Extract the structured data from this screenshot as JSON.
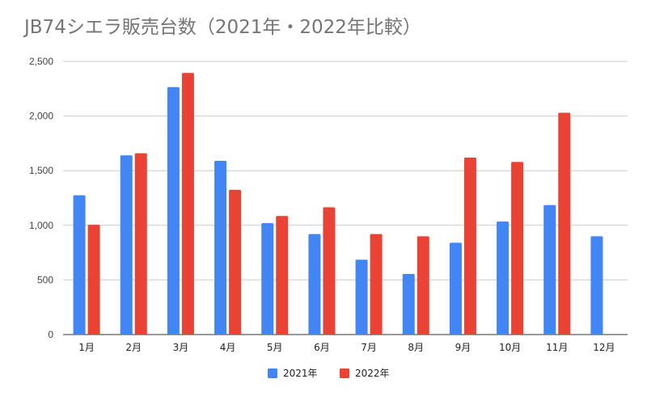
{
  "chart_data": {
    "type": "bar",
    "title": "JB74シエラ販売台数（2021年・2022年比較）",
    "categories": [
      "1月",
      "2月",
      "3月",
      "4月",
      "5月",
      "6月",
      "7月",
      "8月",
      "9月",
      "10月",
      "11月",
      "12月"
    ],
    "series": [
      {
        "name": "2021年",
        "color": "#4285f4",
        "values": [
          1275,
          1640,
          2265,
          1590,
          1020,
          920,
          685,
          555,
          840,
          1035,
          1185,
          900
        ]
      },
      {
        "name": "2022年",
        "color": "#ea4335",
        "values": [
          1005,
          1660,
          2395,
          1325,
          1085,
          1165,
          920,
          900,
          1620,
          1580,
          2030,
          null
        ]
      }
    ],
    "ylim": [
      0,
      2500
    ],
    "yticks": [
      0,
      500,
      1000,
      1500,
      2000,
      2500
    ],
    "ytick_labels": [
      "0",
      "500",
      "1,000",
      "1,500",
      "2,000",
      "2,500"
    ],
    "grid": true,
    "legend_position": "bottom"
  }
}
